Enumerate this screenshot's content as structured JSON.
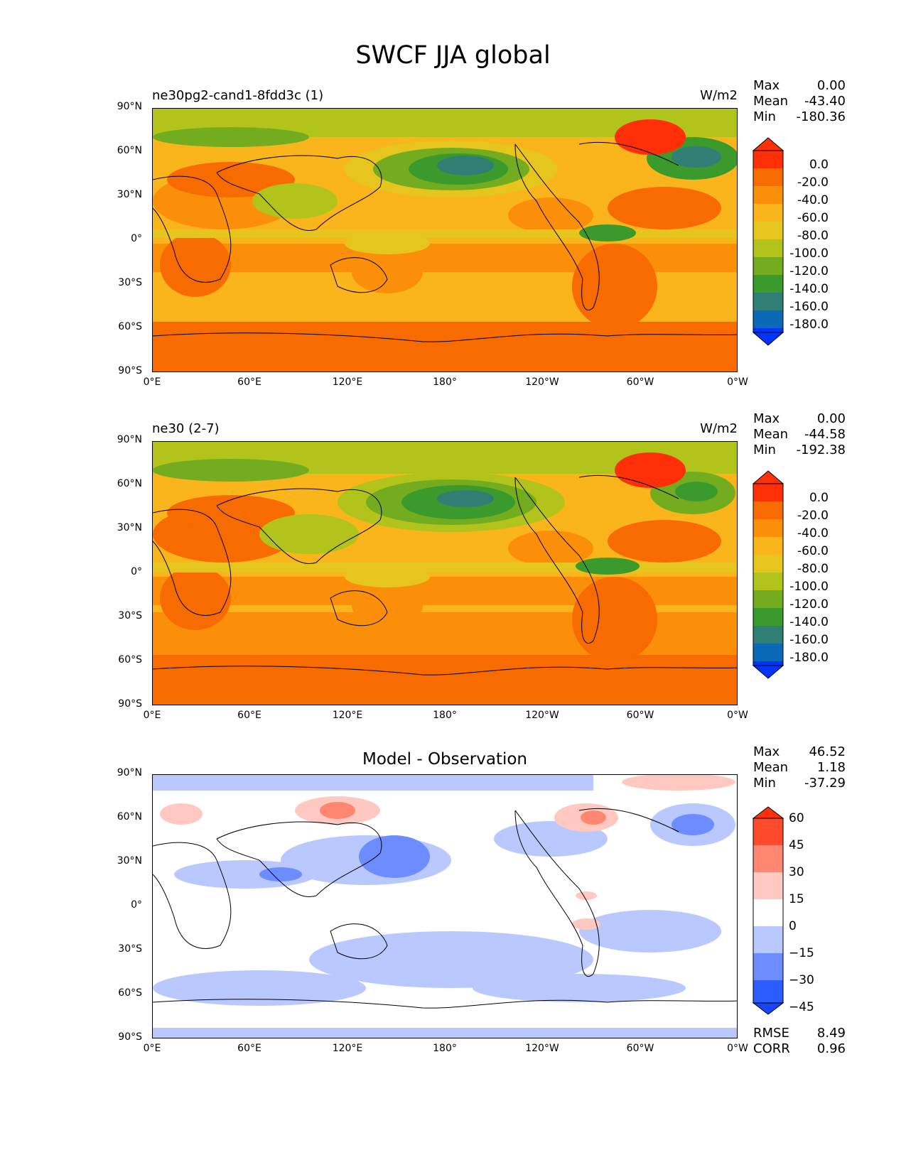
{
  "title": "SWCF JJA global",
  "colors": {
    "abs_scale": [
      "#0033ff",
      "#0a6ab8",
      "#2f7f74",
      "#3a9a2c",
      "#73ad1f",
      "#b2c31b",
      "#e6c51f",
      "#fbb51c",
      "#fb8f09",
      "#f86b00",
      "#ff3008"
    ],
    "diff_scale": [
      "#1b44ff",
      "#2d5cff",
      "#6c8cff",
      "#b9c8ff",
      "#ffffff",
      "#ffc8c1",
      "#ff8670",
      "#ff4b2b",
      "#ff3008"
    ]
  },
  "axes": {
    "lat_labels": [
      "90°N",
      "60°N",
      "30°N",
      "0°",
      "30°S",
      "60°S",
      "90°S"
    ],
    "lon_labels": [
      "0°E",
      "60°E",
      "120°E",
      "180°",
      "120°W",
      "60°W",
      "0°W"
    ]
  },
  "panels": [
    {
      "title": "ne30pg2-cand1-8fdd3c (1)",
      "units": "W/m2",
      "stats": [
        {
          "label": "Max",
          "value": "0.00"
        },
        {
          "label": "Mean",
          "value": "-43.40"
        },
        {
          "label": "Min",
          "value": "-180.36"
        }
      ],
      "colorbar_labels": [
        "0.0",
        "-20.0",
        "-40.0",
        "-60.0",
        "-80.0",
        "-100.0",
        "-120.0",
        "-140.0",
        "-160.0",
        "-180.0"
      ]
    },
    {
      "title": "ne30 (2-7)",
      "units": "W/m2",
      "stats": [
        {
          "label": "Max",
          "value": "0.00"
        },
        {
          "label": "Mean",
          "value": "-44.58"
        },
        {
          "label": "Min",
          "value": "-192.38"
        }
      ],
      "colorbar_labels": [
        "0.0",
        "-20.0",
        "-40.0",
        "-60.0",
        "-80.0",
        "-100.0",
        "-120.0",
        "-140.0",
        "-160.0",
        "-180.0"
      ]
    },
    {
      "title": "Model - Observation",
      "stats": [
        {
          "label": "Max",
          "value": "46.52"
        },
        {
          "label": "Mean",
          "value": "1.18"
        },
        {
          "label": "Min",
          "value": "-37.29"
        }
      ],
      "colorbar_labels": [
        "60",
        "45",
        "30",
        "15",
        "0",
        "−15",
        "−30",
        "−45"
      ],
      "footer": [
        {
          "label": "RMSE",
          "value": "8.49"
        },
        {
          "label": "CORR",
          "value": "0.96"
        }
      ]
    }
  ]
}
